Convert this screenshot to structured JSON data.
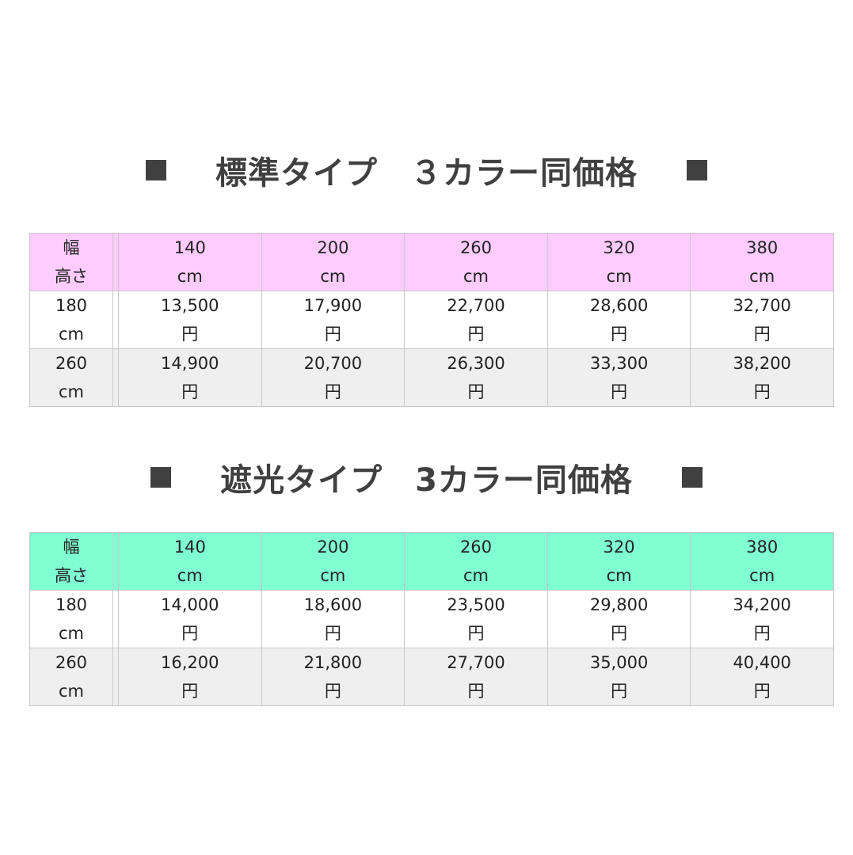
{
  "sections": [
    {
      "title": "標準タイプ　３カラー同価格",
      "header_color": "#ffccff",
      "corner": [
        "幅",
        "高さ"
      ],
      "widths": [
        "140",
        "200",
        "260",
        "320",
        "380"
      ],
      "width_unit": "cm",
      "rows": [
        {
          "height": "180",
          "unit": "cm",
          "prices": [
            "13,500",
            "17,900",
            "22,700",
            "28,600",
            "32,700"
          ]
        },
        {
          "height": "260",
          "unit": "cm",
          "prices": [
            "14,900",
            "20,700",
            "26,300",
            "33,300",
            "38,200"
          ]
        }
      ],
      "currency": "円"
    },
    {
      "title": "遮光タイプ　3カラー同価格",
      "header_color": "#80ffd2",
      "corner": [
        "幅",
        "高さ"
      ],
      "widths": [
        "140",
        "200",
        "260",
        "320",
        "380"
      ],
      "width_unit": "cm",
      "rows": [
        {
          "height": "180",
          "unit": "cm",
          "prices": [
            "14,000",
            "18,600",
            "23,500",
            "29,800",
            "34,200"
          ]
        },
        {
          "height": "260",
          "unit": "cm",
          "prices": [
            "16,200",
            "21,800",
            "27,700",
            "35,000",
            "40,400"
          ]
        }
      ],
      "currency": "円"
    }
  ]
}
